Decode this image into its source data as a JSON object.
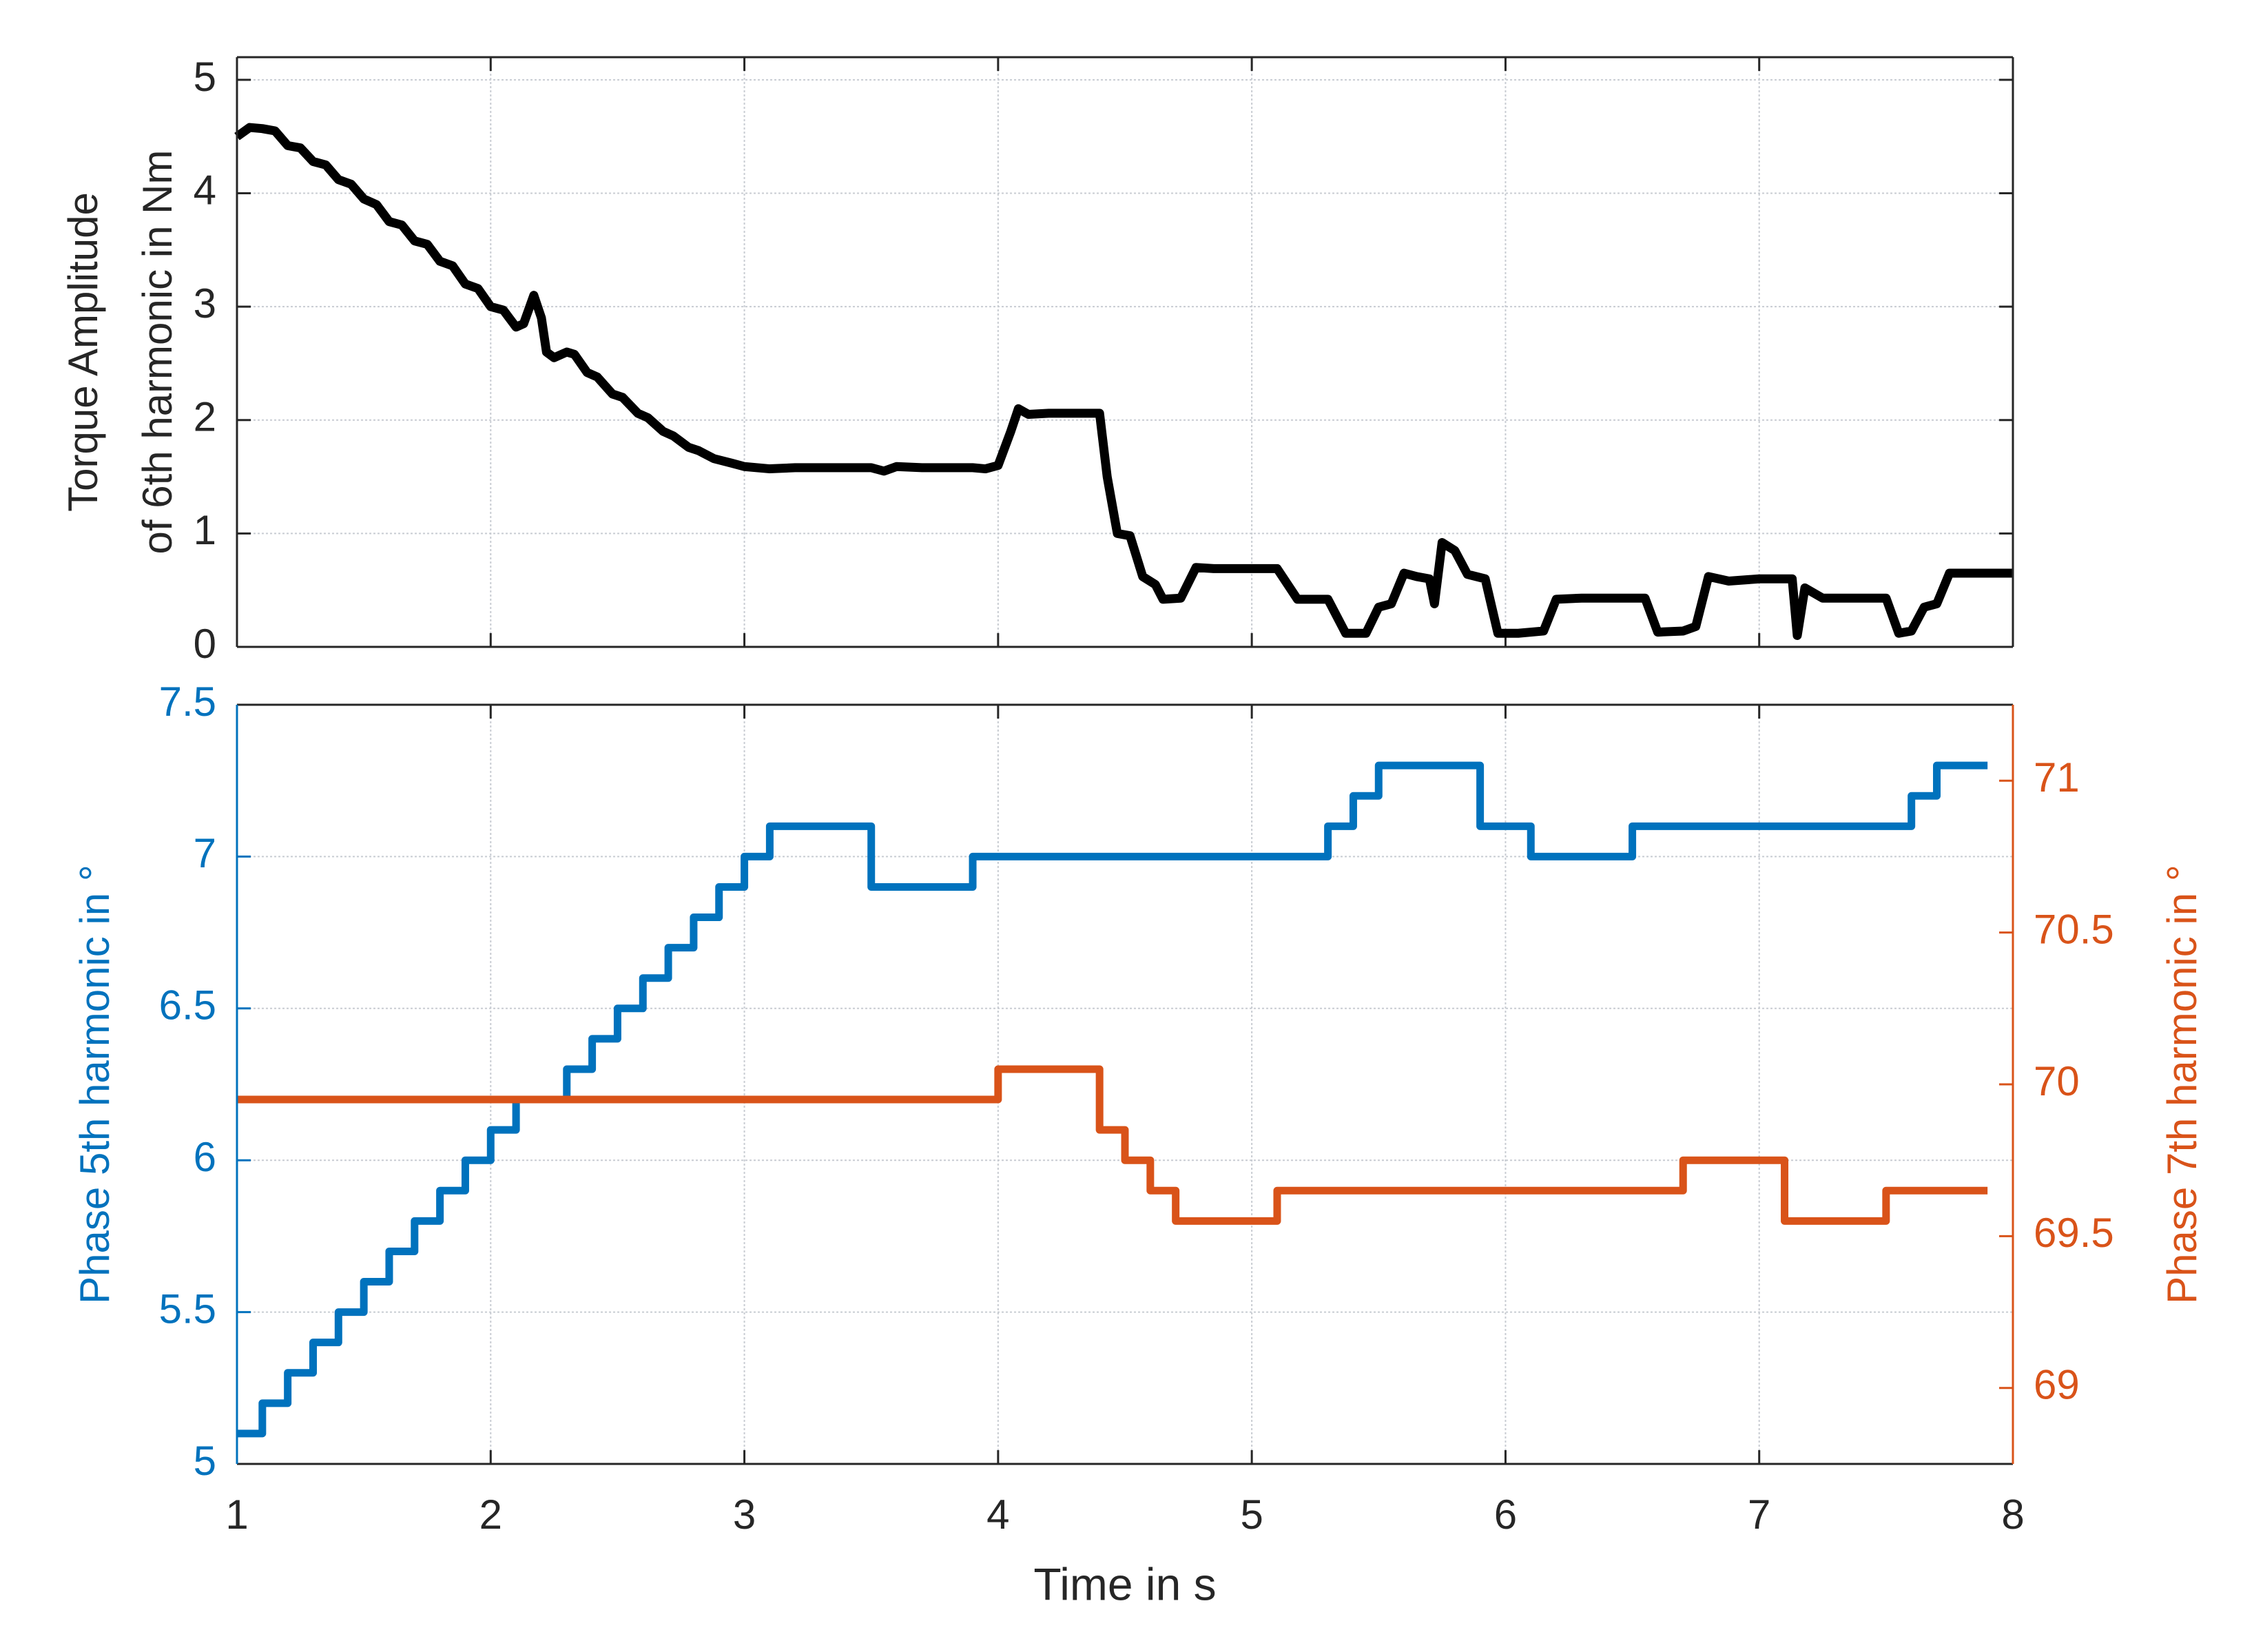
{
  "chart_data": [
    {
      "type": "line",
      "ylabel": [
        "Torque Amplitude",
        "of 6th harmonic in Nm"
      ],
      "xlim": [
        1,
        8
      ],
      "xticks": [
        1,
        2,
        3,
        4,
        5,
        6,
        7,
        8
      ],
      "ylim": [
        0,
        5.2
      ],
      "yticks": [
        0,
        1,
        2,
        3,
        4,
        5
      ],
      "grid": true,
      "series": [
        {
          "color": "#000000",
          "x": [
            1.0,
            1.05,
            1.1,
            1.15,
            1.2,
            1.25,
            1.3,
            1.35,
            1.4,
            1.45,
            1.5,
            1.55,
            1.6,
            1.65,
            1.7,
            1.75,
            1.8,
            1.85,
            1.9,
            1.95,
            2.0,
            2.05,
            2.1,
            2.13,
            2.17,
            2.2,
            2.22,
            2.25,
            2.3,
            2.33,
            2.38,
            2.42,
            2.48,
            2.52,
            2.58,
            2.62,
            2.68,
            2.72,
            2.78,
            2.82,
            2.88,
            2.95,
            3.0,
            3.1,
            3.2,
            3.3,
            3.5,
            3.55,
            3.6,
            3.7,
            3.9,
            3.95,
            4.0,
            4.05,
            4.08,
            4.12,
            4.2,
            4.4,
            4.43,
            4.47,
            4.52,
            4.57,
            4.62,
            4.65,
            4.72,
            4.78,
            4.85,
            5.1,
            5.18,
            5.3,
            5.37,
            5.45,
            5.5,
            5.55,
            5.6,
            5.65,
            5.7,
            5.72,
            5.75,
            5.8,
            5.85,
            5.92,
            5.97,
            6.05,
            6.15,
            6.2,
            6.3,
            6.55,
            6.6,
            6.7,
            6.75,
            6.8,
            6.88,
            7.0,
            7.13,
            7.15,
            7.18,
            7.25,
            7.3,
            7.5,
            7.55,
            7.6,
            7.65,
            7.7,
            7.75,
            7.8,
            8.0
          ],
          "values": [
            4.5,
            4.58,
            4.57,
            4.55,
            4.42,
            4.4,
            4.28,
            4.25,
            4.12,
            4.08,
            3.95,
            3.9,
            3.75,
            3.72,
            3.58,
            3.55,
            3.4,
            3.36,
            3.2,
            3.16,
            3.0,
            2.97,
            2.82,
            2.85,
            3.1,
            2.9,
            2.6,
            2.55,
            2.6,
            2.58,
            2.42,
            2.38,
            2.23,
            2.2,
            2.06,
            2.02,
            1.9,
            1.86,
            1.76,
            1.73,
            1.66,
            1.62,
            1.59,
            1.57,
            1.58,
            1.58,
            1.58,
            1.55,
            1.59,
            1.58,
            1.58,
            1.57,
            1.6,
            1.9,
            2.1,
            2.05,
            2.06,
            2.06,
            1.5,
            1.0,
            0.98,
            0.62,
            0.55,
            0.42,
            0.43,
            0.7,
            0.69,
            0.69,
            0.42,
            0.42,
            0.12,
            0.12,
            0.35,
            0.38,
            0.65,
            0.62,
            0.6,
            0.38,
            0.92,
            0.85,
            0.64,
            0.6,
            0.12,
            0.12,
            0.14,
            0.42,
            0.43,
            0.43,
            0.13,
            0.14,
            0.18,
            0.62,
            0.58,
            0.6,
            0.6,
            0.1,
            0.52,
            0.43,
            0.43,
            0.43,
            0.12,
            0.14,
            0.35,
            0.38,
            0.65,
            0.65,
            0.65
          ]
        }
      ]
    },
    {
      "type": "step",
      "xlabel": "Time in s",
      "ylabel": "Phase 5th harmonic in °",
      "y2label": "Phase 7th harmonic in °",
      "xlim": [
        1,
        8
      ],
      "xticks": [
        1,
        2,
        3,
        4,
        5,
        6,
        7,
        8
      ],
      "ylim": [
        5,
        7.5
      ],
      "yticks": [
        5,
        5.5,
        6,
        6.5,
        7,
        7.5
      ],
      "y2lim": [
        68.75,
        71.25
      ],
      "y2ticks": [
        69,
        69.5,
        70,
        70.5,
        71
      ],
      "grid": true,
      "series": [
        {
          "color": "#0072BD",
          "axis": "y",
          "x": [
            1.0,
            1.1,
            1.2,
            1.3,
            1.4,
            1.5,
            1.6,
            1.7,
            1.8,
            1.9,
            2.0,
            2.1,
            2.3,
            2.4,
            2.5,
            2.6,
            2.7,
            2.8,
            2.9,
            3.0,
            3.1,
            3.5,
            3.9,
            5.3,
            5.4,
            5.5,
            5.9,
            6.1,
            6.5,
            7.6,
            7.7,
            7.9
          ],
          "values": [
            5.1,
            5.2,
            5.3,
            5.4,
            5.5,
            5.6,
            5.7,
            5.8,
            5.9,
            6.0,
            6.1,
            6.2,
            6.3,
            6.4,
            6.5,
            6.6,
            6.7,
            6.8,
            6.9,
            7.0,
            7.1,
            6.9,
            7.0,
            7.1,
            7.2,
            7.3,
            7.1,
            7.0,
            7.1,
            7.2,
            7.3,
            7.3
          ]
        },
        {
          "color": "#D95319",
          "axis": "y2",
          "x": [
            1.0,
            4.0,
            4.4,
            4.5,
            4.6,
            4.7,
            5.1,
            6.7,
            7.1,
            7.5,
            7.9
          ],
          "values": [
            69.95,
            70.05,
            69.85,
            69.75,
            69.65,
            69.55,
            69.65,
            69.75,
            69.55,
            69.65,
            69.65
          ]
        }
      ]
    }
  ]
}
